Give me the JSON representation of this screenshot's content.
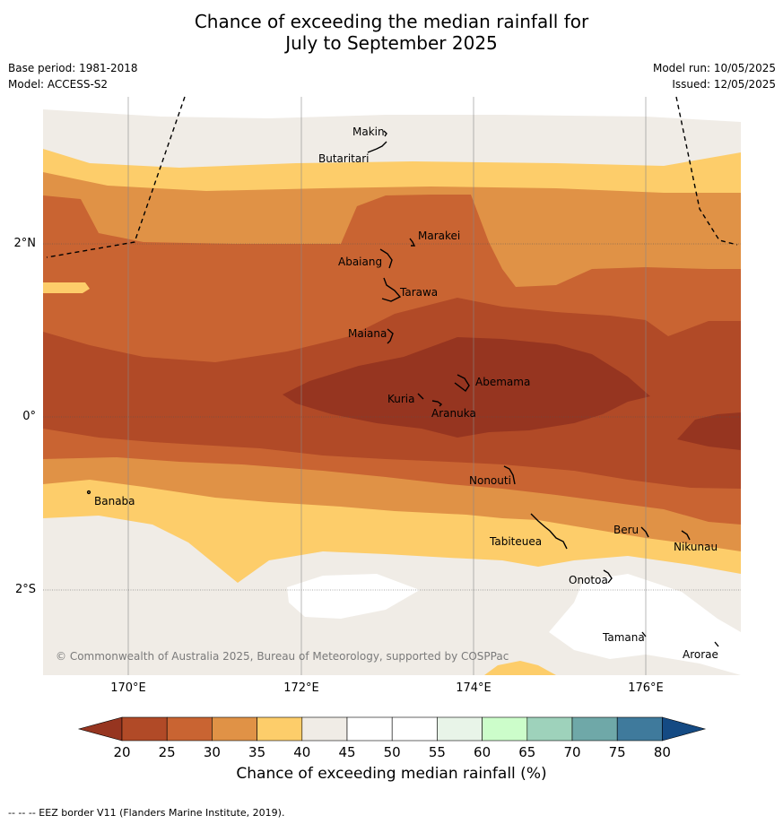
{
  "title_line1": "Chance of exceeding the median rainfall for",
  "title_line2": "July to September 2025",
  "base_period": "Base period: 1981-2018",
  "model": "Model: ACCESS-S2",
  "model_run": "Model run: 10/05/2025",
  "issued": "Issued: 12/05/2025",
  "copyright": "© Commonwealth of Australia 2025, Bureau of Meteorology, supported by COSPPac",
  "lat_labels": [
    "2°N",
    "0°",
    "2°S"
  ],
  "lon_labels": [
    "170°E",
    "172°E",
    "174°E",
    "176°E"
  ],
  "places": [
    "Makin",
    "Butaritari",
    "Marakei",
    "Abaiang",
    "Tarawa",
    "Maiana",
    "Abemama",
    "Kuria",
    "Aranuka",
    "Banaba",
    "Nonouti",
    "Tabiteuea",
    "Beru",
    "Nikunau",
    "Onotoa",
    "Tamana",
    "Arorae"
  ],
  "colorbar": {
    "title": "Chance of exceeding median rainfall (%)",
    "ticks": [
      "20",
      "25",
      "30",
      "35",
      "40",
      "45",
      "50",
      "55",
      "60",
      "65",
      "70",
      "75",
      "80"
    ],
    "colors": [
      "#963520",
      "#b14a27",
      "#c96432",
      "#e09246",
      "#fdcd6a",
      "#f0ece6",
      "#ffffff",
      "#ffffff",
      "#e8f4e8",
      "#ccfdca",
      "#9ed2bb",
      "#6fa8a8",
      "#3f7a9c",
      "#144a83"
    ]
  },
  "footnote": "--  --  -- EEZ border V11 (Flanders Marine Institute, 2019)."
}
